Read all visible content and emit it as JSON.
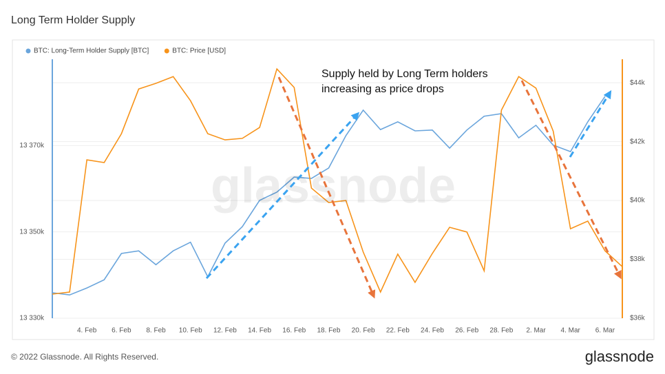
{
  "chart_data": {
    "type": "line",
    "title": "Long Term Holder Supply",
    "footer": "© 2022 Glassnode. All Rights Reserved.",
    "brand": "glassnode",
    "watermark": "glassnode",
    "annotation": [
      "Supply held by Long Term holders",
      "increasing as price drops"
    ],
    "categories": [
      null,
      null,
      "4. Feb",
      null,
      "6. Feb",
      null,
      "8. Feb",
      null,
      "10. Feb",
      null,
      "12. Feb",
      null,
      "14. Feb",
      null,
      "16. Feb",
      null,
      "18. Feb",
      null,
      "20. Feb",
      null,
      "22. Feb",
      null,
      "24. Feb",
      null,
      "26. Feb",
      null,
      "28. Feb",
      null,
      "2. Mar",
      null,
      "4. Mar",
      null,
      "6. Mar",
      null
    ],
    "series": [
      {
        "name": "BTC: Long-Term Holder Supply [BTC]",
        "color": "#6aa5dc",
        "axis": "y",
        "values": [
          13335900,
          13335400,
          13337000,
          13338900,
          13345000,
          13345600,
          13342400,
          13345600,
          13347600,
          13339600,
          13347400,
          13351200,
          13357300,
          13359200,
          13362700,
          13362400,
          13364800,
          13372300,
          13378200,
          13373700,
          13375500,
          13373400,
          13373600,
          13369400,
          13373600,
          13376800,
          13377400,
          13371800,
          13374700,
          13370100,
          13368600,
          13375500,
          13381400,
          null
        ]
      },
      {
        "name": "BTC: Price [USD]",
        "color": "#f7931a",
        "axis": "y2",
        "values": [
          36820,
          36890,
          41380,
          41290,
          42270,
          43790,
          43980,
          44210,
          43390,
          42270,
          42060,
          42110,
          42480,
          44470,
          43840,
          40420,
          39930,
          40000,
          38250,
          36890,
          38180,
          37220,
          38200,
          39090,
          38930,
          37610,
          43070,
          44210,
          43820,
          42360,
          39040,
          39300,
          38290,
          37750
        ]
      }
    ],
    "ylim": [
      13330000,
      13390000
    ],
    "yticks": [
      {
        "value": 13330000,
        "label": "13 330k"
      },
      {
        "value": 13350000,
        "label": "13 350k"
      },
      {
        "value": 13370000,
        "label": "13 370k"
      }
    ],
    "y2lim": [
      36000,
      44800
    ],
    "y2ticks": [
      {
        "value": 36000,
        "label": "$36k"
      },
      {
        "value": 38000,
        "label": "$38k"
      },
      {
        "value": 40000,
        "label": "$40k"
      },
      {
        "value": 42000,
        "label": "$42k"
      },
      {
        "value": 44000,
        "label": "$44k"
      }
    ],
    "grid": true
  }
}
